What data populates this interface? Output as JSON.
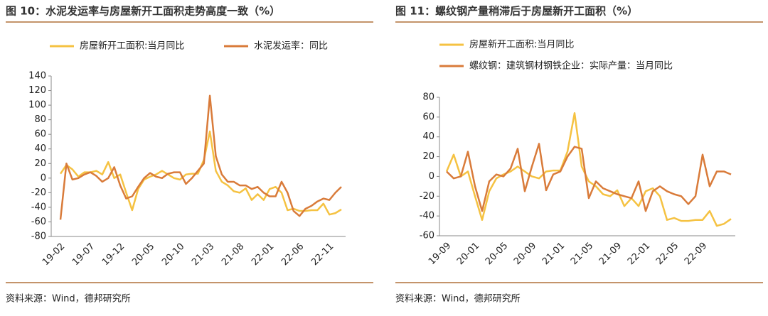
{
  "chart_data": [
    {
      "type": "line",
      "title": "图 10：水泥发运率与房屋新开工面积走势高度一致（%）",
      "source": "资料来源：Wind，德邦研究所",
      "categories": [
        "19-02",
        null,
        null,
        null,
        null,
        "19-07",
        null,
        null,
        null,
        null,
        "19-12",
        null,
        null,
        null,
        null,
        "20-05",
        null,
        null,
        null,
        null,
        "20-10",
        null,
        null,
        null,
        null,
        "21-03",
        null,
        null,
        null,
        null,
        "21-08",
        null,
        null,
        null,
        null,
        "22-01",
        null,
        null,
        null,
        null,
        "22-06",
        null,
        null,
        null,
        null,
        "22-11",
        null,
        null
      ],
      "series": [
        {
          "name": "房屋新开工面积:当月同比",
          "color": "#f5c242",
          "values": [
            6,
            18,
            12,
            2,
            8,
            8,
            10,
            5,
            22,
            0,
            5,
            -20,
            -44,
            -15,
            -2,
            2,
            5,
            10,
            5,
            0,
            -2,
            5,
            6,
            6,
            25,
            64,
            10,
            -5,
            -10,
            -18,
            -20,
            -14,
            -30,
            -22,
            -30,
            -15,
            -12,
            -20,
            -44,
            -42,
            -45,
            -45,
            -44,
            -44,
            -35,
            -50,
            -48,
            -43
          ]
        },
        {
          "name": "水泥发运率：同比",
          "color": "#d97b3a",
          "values": [
            -57,
            20,
            -2,
            0,
            5,
            8,
            3,
            -5,
            0,
            15,
            -10,
            -28,
            -25,
            -12,
            0,
            7,
            2,
            0,
            6,
            8,
            8,
            -8,
            0,
            10,
            20,
            113,
            30,
            5,
            -5,
            -5,
            -10,
            -10,
            -15,
            -12,
            -20,
            -25,
            -25,
            -5,
            -20,
            -45,
            -52,
            -42,
            -38,
            -32,
            -28,
            -30,
            -20,
            -12
          ]
        }
      ],
      "ylim": [
        -80,
        140
      ],
      "yticks": [
        -80,
        -60,
        -40,
        -20,
        0,
        20,
        40,
        60,
        80,
        100,
        120,
        140
      ],
      "legend": "top-row"
    },
    {
      "type": "line",
      "title": "图 11：螺纹钢产量稍滞后于房屋新开工面积（%）",
      "source": "资料来源：Wind，德邦研究所",
      "categories": [
        "19-09",
        null,
        null,
        null,
        "20-01",
        null,
        null,
        null,
        "20-05",
        null,
        null,
        null,
        "20-09",
        null,
        null,
        null,
        "21-01",
        null,
        null,
        null,
        "21-05",
        null,
        null,
        null,
        "21-09",
        null,
        null,
        null,
        "22-01",
        null,
        null,
        null,
        "22-05",
        null,
        null,
        null,
        "22-09",
        null,
        null,
        null,
        null
      ],
      "series": [
        {
          "name": "房屋新开工面积:当月同比",
          "color": "#f5c242",
          "values": [
            5,
            22,
            0,
            5,
            -20,
            -44,
            -15,
            -2,
            2,
            5,
            10,
            5,
            0,
            -2,
            5,
            6,
            6,
            25,
            64,
            10,
            -5,
            -10,
            -18,
            -20,
            -14,
            -30,
            -22,
            -30,
            -15,
            -12,
            -20,
            -44,
            -42,
            -45,
            -45,
            -44,
            -44,
            -35,
            -50,
            -48,
            -43
          ]
        },
        {
          "name": "螺纹钢：建筑钢材钢铁企业：实际产量：当月同比",
          "color": "#d97b3a",
          "values": [
            5,
            -2,
            0,
            25,
            -10,
            -35,
            -5,
            2,
            0,
            8,
            28,
            -15,
            10,
            33,
            -14,
            2,
            5,
            20,
            30,
            28,
            -22,
            -5,
            -12,
            -15,
            -18,
            -20,
            -22,
            -5,
            -35,
            -15,
            -10,
            -15,
            -18,
            -20,
            -28,
            -20,
            22,
            -10,
            5,
            5,
            2
          ]
        }
      ],
      "ylim": [
        -60,
        80
      ],
      "yticks": [
        -60,
        -40,
        -20,
        0,
        20,
        40,
        60,
        80
      ],
      "legend": "top-column"
    }
  ]
}
